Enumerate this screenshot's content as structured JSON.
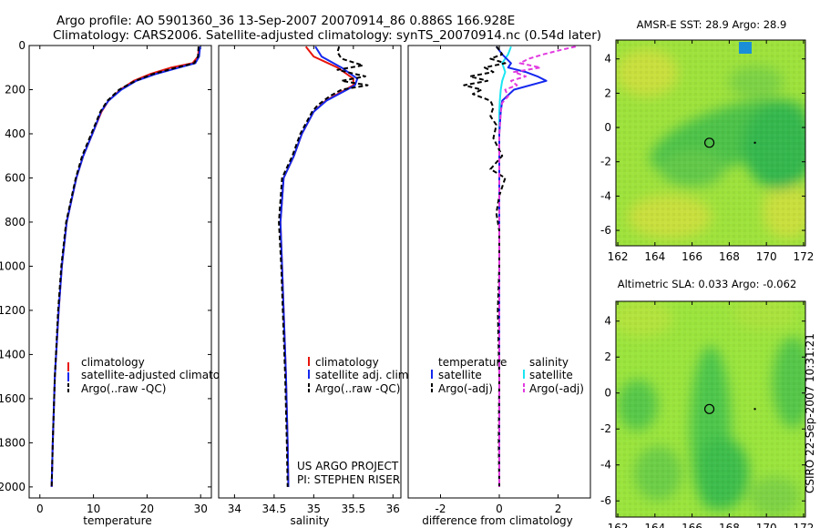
{
  "header": {
    "line1": "Argo profile: AO 5901360_36 13-Sep-2007 20070914_86 0.886S 166.928E",
    "line2": "Climatology: CARS2006. Satellite-adjusted climatology: synTS_20070914.nc (0.54d later)"
  },
  "credit": "CSIRO 22-Sep-2007 10:31:21",
  "colors": {
    "climatology": "#e8140c",
    "satellite": "#1428ee",
    "argo": "#000000",
    "satellite_salinity": "#19e6f2",
    "argo_salinity": "#e23be0",
    "map_field": "#8fe43e",
    "map_dark": "#27b84e",
    "map_light": "#cfe23c"
  },
  "chart_data": [
    {
      "type": "line",
      "name": "temperature-panel",
      "xlabel": "temperature",
      "ylabel": "",
      "xlim": [
        -2,
        32
      ],
      "ylim": [
        2050,
        0
      ],
      "x_ticks": [
        "0",
        "10",
        "20",
        "30"
      ],
      "y_ticks": [
        "0",
        "200",
        "400",
        "600",
        "800",
        "1000",
        "1200",
        "1400",
        "1600",
        "1800",
        "2000"
      ],
      "legend": [
        "climatology",
        "satellite-adjusted climatolog",
        "Argo(..raw -QC)"
      ],
      "series": [
        {
          "name": "climatology",
          "depth": [
            5,
            50,
            80,
            100,
            130,
            160,
            200,
            250,
            300,
            400,
            500,
            600,
            800,
            1000,
            1200,
            1500,
            1800,
            2000
          ],
          "values": [
            29.7,
            29.5,
            28.5,
            24.5,
            20.5,
            17.5,
            15.0,
            12.8,
            11.5,
            9.8,
            8.1,
            6.8,
            5.0,
            4.1,
            3.5,
            2.8,
            2.4,
            2.2
          ]
        },
        {
          "name": "satellite-adjusted climatolog",
          "depth": [
            5,
            50,
            80,
            100,
            130,
            160,
            200,
            250,
            300,
            400,
            500,
            600,
            800,
            1000,
            1200,
            1500,
            1800,
            2000
          ],
          "values": [
            29.9,
            29.7,
            29.0,
            26.0,
            21.5,
            18.0,
            15.2,
            12.8,
            11.4,
            9.8,
            8.1,
            6.8,
            5.0,
            4.1,
            3.5,
            2.8,
            2.4,
            2.2
          ]
        },
        {
          "name": "Argo(..raw -QC)",
          "depth": [
            5,
            50,
            80,
            100,
            130,
            160,
            200,
            250,
            300,
            400,
            500,
            600,
            800,
            1000,
            1200,
            1500,
            1800,
            2000
          ],
          "values": [
            29.6,
            29.5,
            28.8,
            25.5,
            21.0,
            17.8,
            14.8,
            12.6,
            11.3,
            9.6,
            7.9,
            6.7,
            4.9,
            4.0,
            3.4,
            2.8,
            2.4,
            2.2
          ]
        }
      ]
    },
    {
      "type": "line",
      "name": "salinity-panel",
      "xlabel": "salinity",
      "ylabel": "",
      "xlim": [
        33.8,
        36.1
      ],
      "ylim": [
        2050,
        0
      ],
      "x_ticks": [
        "34",
        "34.5",
        "35",
        "35.5",
        "36"
      ],
      "y_ticks": [],
      "legend": [
        "climatology",
        "satellite adj. clim.",
        "Argo(..raw -QC)"
      ],
      "annotations": [
        "US ARGO PROJECT",
        "PI: STEPHEN RISER"
      ],
      "series": [
        {
          "name": "climatology",
          "depth": [
            5,
            50,
            100,
            150,
            180,
            200,
            250,
            300,
            400,
            500,
            600,
            800,
            1000,
            1200,
            1500,
            1800,
            2000
          ],
          "values": [
            34.9,
            35.0,
            35.3,
            35.5,
            35.5,
            35.4,
            35.15,
            35.0,
            34.85,
            34.75,
            34.62,
            34.58,
            34.6,
            34.62,
            34.65,
            34.67,
            34.68
          ]
        },
        {
          "name": "satellite adj. clim.",
          "depth": [
            5,
            50,
            100,
            150,
            180,
            200,
            250,
            300,
            400,
            500,
            600,
            800,
            1000,
            1200,
            1500,
            1800,
            2000
          ],
          "values": [
            35.02,
            35.1,
            35.35,
            35.55,
            35.52,
            35.42,
            35.16,
            35.0,
            34.85,
            34.75,
            34.62,
            34.58,
            34.6,
            34.62,
            34.65,
            34.67,
            34.68
          ]
        },
        {
          "name": "Argo(..raw -QC)",
          "depth": [
            5,
            30,
            60,
            90,
            110,
            140,
            160,
            180,
            200,
            230,
            270,
            300,
            400,
            500,
            600,
            800,
            1000,
            1200,
            1500,
            1800,
            2000
          ],
          "values": [
            35.32,
            35.3,
            35.35,
            35.62,
            35.3,
            35.65,
            35.35,
            35.68,
            35.35,
            35.2,
            35.05,
            34.98,
            34.83,
            34.73,
            34.6,
            34.56,
            34.59,
            34.61,
            34.64,
            34.66,
            34.67
          ]
        }
      ]
    },
    {
      "type": "line",
      "name": "difference-panel",
      "xlabel": "difference from climatology",
      "ylabel": "",
      "xlim": [
        -3.1,
        3.1
      ],
      "ylim": [
        2050,
        0
      ],
      "x_ticks": [
        "-2",
        "0",
        "2"
      ],
      "y_ticks": [],
      "legend_headers": [
        "temperature",
        "salinity"
      ],
      "legend": [
        "satellite",
        "Argo(-adj)",
        "satellite",
        "Argo(-adj)"
      ],
      "series": [
        {
          "name": "satellite",
          "group": "temperature",
          "depth": [
            5,
            40,
            80,
            100,
            120,
            140,
            160,
            200,
            250,
            300,
            400,
            600,
            800,
            1000,
            1500,
            2000
          ],
          "values": [
            -0.1,
            0.1,
            0.4,
            0.3,
            0.9,
            1.3,
            1.6,
            0.5,
            0.1,
            0.05,
            0.0,
            0.0,
            0.0,
            0.0,
            0.0,
            0.0
          ]
        },
        {
          "name": "Argo(-adj)",
          "group": "temperature",
          "depth": [
            5,
            20,
            40,
            60,
            80,
            100,
            120,
            140,
            160,
            180,
            200,
            220,
            250,
            280,
            320,
            360,
            420,
            500,
            560,
            600,
            680,
            760,
            840,
            1000,
            1200,
            1500,
            1800,
            2000
          ],
          "values": [
            -0.1,
            0.0,
            0.1,
            -0.3,
            0.2,
            -0.5,
            -0.2,
            -1.0,
            -0.4,
            -1.2,
            -0.6,
            -0.9,
            -0.3,
            -0.2,
            -0.3,
            -0.1,
            -0.2,
            0.1,
            -0.3,
            0.2,
            0.0,
            -0.1,
            0.0,
            0.0,
            -0.05,
            0.0,
            -0.02,
            0.0
          ]
        },
        {
          "name": "satellite",
          "group": "salinity",
          "depth": [
            5,
            40,
            80,
            120,
            160,
            200,
            250,
            300,
            400,
            600,
            800,
            1000,
            1500,
            2000
          ],
          "values": [
            0.4,
            0.3,
            0.1,
            0.2,
            0.1,
            0.05,
            0.02,
            0.0,
            0.0,
            0.0,
            0.0,
            0.0,
            0.0,
            0.0
          ]
        },
        {
          "name": "Argo(-adj)",
          "group": "salinity",
          "depth": [
            5,
            20,
            40,
            60,
            80,
            100,
            120,
            140,
            160,
            180,
            200,
            230,
            260,
            300,
            400,
            500,
            600,
            800,
            1000,
            1500,
            2000
          ],
          "values": [
            2.6,
            2.1,
            1.5,
            1.0,
            0.7,
            1.4,
            0.5,
            0.9,
            0.4,
            0.6,
            0.2,
            0.3,
            0.1,
            0.05,
            0.0,
            0.0,
            0.0,
            0.0,
            0.0,
            0.0,
            0.0
          ]
        }
      ]
    },
    {
      "type": "heatmap",
      "name": "sst-map",
      "title": "AMSR-E SST: 28.9 Argo: 28.9",
      "xlim": [
        161.9,
        172.1
      ],
      "ylim": [
        -6.9,
        5.1
      ],
      "x_ticks": [
        "162",
        "164",
        "166",
        "168",
        "170",
        "172"
      ],
      "y_ticks": [
        "4",
        "2",
        "0",
        "-2",
        "-4",
        "-6"
      ],
      "argo_position": [
        166.93,
        -0.89
      ]
    },
    {
      "type": "heatmap",
      "name": "sla-map",
      "title": "Altimetric SLA: 0.033 Argo: -0.062",
      "xlim": [
        161.9,
        172.1
      ],
      "ylim": [
        -6.9,
        5.1
      ],
      "x_ticks": [
        "162",
        "164",
        "166",
        "168",
        "170",
        "172"
      ],
      "y_ticks": [
        "4",
        "2",
        "0",
        "-2",
        "-4",
        "-6"
      ],
      "argo_position": [
        166.93,
        -0.89
      ]
    }
  ]
}
